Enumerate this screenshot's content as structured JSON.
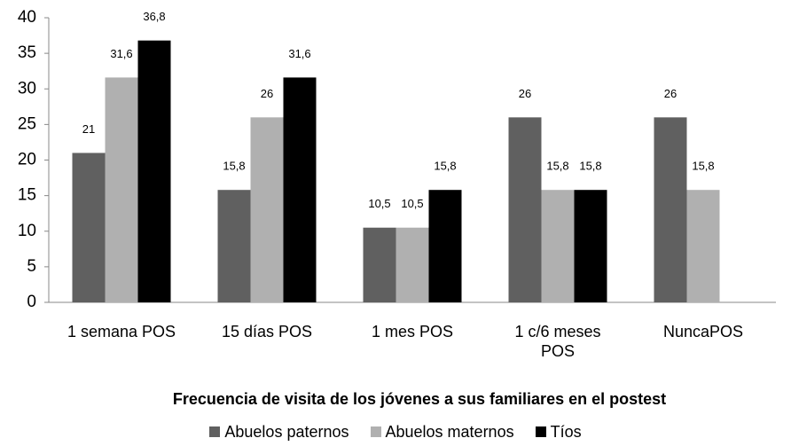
{
  "chart_data": {
    "type": "bar",
    "x_label": "Frecuencia de visita de los jóvenes a sus familiares en el postest",
    "categories": [
      "1 semana POS",
      "15 días POS",
      "1 mes POS",
      "1 c/6 meses POS",
      "NuncaPOS"
    ],
    "series": [
      {
        "name": "Abuelos paternos",
        "color": "#606060",
        "values": [
          21,
          15.8,
          10.5,
          26,
          26
        ],
        "value_labels": [
          "21",
          "15,8",
          "10,5",
          "26",
          "26"
        ]
      },
      {
        "name": "Abuelos maternos",
        "color": "#b0b0b0",
        "values": [
          31.6,
          26,
          10.5,
          15.8,
          15.8
        ],
        "value_labels": [
          "31,6",
          "26",
          "10,5",
          "15,8",
          "15,8"
        ]
      },
      {
        "name": "Tíos",
        "color": "#000000",
        "values": [
          36.8,
          31.6,
          15.8,
          15.8,
          null
        ],
        "value_labels": [
          "36,8",
          "31,6",
          "15,8",
          "15,8",
          null
        ]
      }
    ],
    "ylim": [
      0,
      40
    ],
    "yticks": [
      0,
      5,
      10,
      15,
      20,
      25,
      30,
      35,
      40
    ],
    "grid": false,
    "legend": "bottom"
  }
}
